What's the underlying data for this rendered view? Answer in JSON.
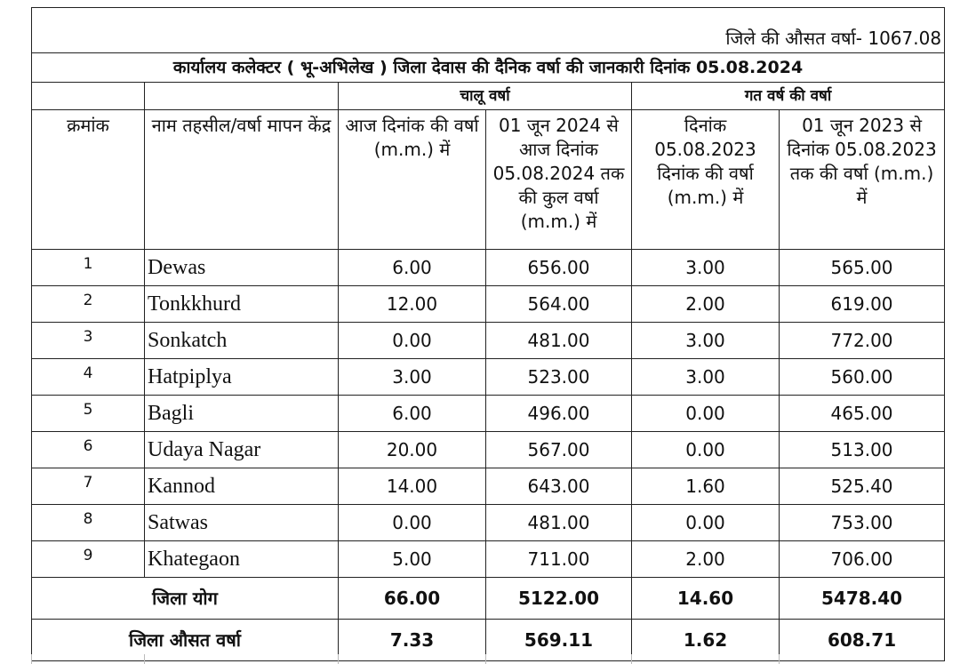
{
  "header": {
    "average": "जिले की औसत वर्षा- 1067.08",
    "title": "कार्यालय कलेक्टर ( भू-अभिलेख ) जिला देवास की दैनिक वर्षा की जानकारी दिनांक 05.08.2024"
  },
  "table": {
    "groups": [
      "चालू वर्षा",
      "गत वर्ष की वर्षा"
    ],
    "columns": [
      "क्रमांक",
      "नाम तहसील/वर्षा मापन केंद्र",
      "आज दिनांक की वर्षा (m.m.) में",
      "01 जून 2024 से आज दिनांक 05.08.2024 तक की कुल वर्षा (m.m.) में",
      "दिनांक 05.08.2023 दिनांक की वर्षा (m.m.) में",
      "01 जून 2023 से दिनांक 05.08.2023 तक की वर्षा (m.m.) में"
    ],
    "rows": [
      [
        "1",
        "Dewas",
        "6.00",
        "656.00",
        "3.00",
        "565.00"
      ],
      [
        "2",
        "Tonkkhurd",
        "12.00",
        "564.00",
        "2.00",
        "619.00"
      ],
      [
        "3",
        "Sonkatch",
        "0.00",
        "481.00",
        "3.00",
        "772.00"
      ],
      [
        "4",
        "Hatpiplya",
        "3.00",
        "523.00",
        "3.00",
        "560.00"
      ],
      [
        "5",
        "Bagli",
        "6.00",
        "496.00",
        "0.00",
        "465.00"
      ],
      [
        "6",
        "Udaya Nagar",
        "20.00",
        "567.00",
        "0.00",
        "513.00"
      ],
      [
        "7",
        "Kannod",
        "14.00",
        "643.00",
        "1.60",
        "525.40"
      ],
      [
        "8",
        "Satwas",
        "0.00",
        "481.00",
        "0.00",
        "753.00"
      ],
      [
        "9",
        "Khategaon",
        "5.00",
        "711.00",
        "2.00",
        "706.00"
      ]
    ],
    "totals": [
      "जिला योग",
      "66.00",
      "5122.00",
      "14.60",
      "5478.40"
    ],
    "averages": [
      "जिला औसत वर्षा",
      "7.33",
      "569.11",
      "1.62",
      "608.71"
    ]
  }
}
